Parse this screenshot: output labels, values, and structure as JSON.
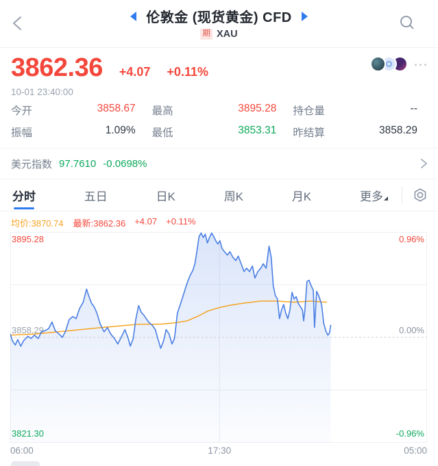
{
  "colors": {
    "red": "#f4473b",
    "green": "#0ca95c",
    "orange": "#f6a423",
    "line_blue": "#4a7fe4",
    "accent_blue": "#2f7bef",
    "label_gray": "#76808f"
  },
  "icons": {
    "back": "chevron-left",
    "prev": "triangle-left",
    "next": "triangle-right",
    "search": "magnifier",
    "more": "ellipsis",
    "usd": "chevron-right",
    "settings": "hexagon-nut",
    "more_tab": "corner-triangle"
  },
  "header": {
    "title": "伦敦金 (现货黄金) CFD",
    "badge": "期",
    "symbol": "XAU"
  },
  "quote": {
    "price": "3862.36",
    "change": "+4.07",
    "change_pct": "+0.11%",
    "timestamp": "10-01 23:40:00",
    "more_label": "⋯"
  },
  "stats": [
    {
      "label": "今开",
      "value": "3858.67",
      "color": "red"
    },
    {
      "label": "最高",
      "value": "3895.28",
      "color": "red"
    },
    {
      "label": "持仓量",
      "value": "--",
      "color": "dark"
    },
    {
      "label": "振幅",
      "value": "1.09%",
      "color": "dark"
    },
    {
      "label": "最低",
      "value": "3853.31",
      "color": "green"
    },
    {
      "label": "昨结算",
      "value": "3858.29",
      "color": "dark"
    }
  ],
  "usd_index": {
    "label": "美元指数",
    "value": "97.7610",
    "change_pct": "-0.0698%"
  },
  "tabs": [
    {
      "label": "分时",
      "active": true
    },
    {
      "label": "五日",
      "active": false
    },
    {
      "label": "日K",
      "active": false
    },
    {
      "label": "周K",
      "active": false
    },
    {
      "label": "月K",
      "active": false
    },
    {
      "label": "更多",
      "active": false
    }
  ],
  "legend": {
    "avg": "均价:3870.74",
    "latest": "最新:3862.36",
    "change": "+4.07",
    "change_pct": "+0.11%"
  },
  "chart_data": {
    "type": "line",
    "title": "分时 intraday line",
    "base_price": 3858.29,
    "ylim_pct": [
      -0.96,
      0.96
    ],
    "x_labels": [
      "06:00",
      "17:30",
      "05:00"
    ],
    "y_left_labels": {
      "top": "3895.28",
      "mid": "3858.29",
      "bottom": "3821.30"
    },
    "y_right_labels": {
      "top": "0.96%",
      "mid": "0.00%",
      "bottom": "-0.96%"
    },
    "grid": {
      "v_frac": 0.502,
      "h_pct": [
        0.48,
        -0.48
      ],
      "zero_dashed": true
    },
    "series": [
      {
        "name": "price_pct",
        "color": "#4a7fe4",
        "fill": true,
        "points": [
          [
            0.0,
            0.03
          ],
          [
            0.005,
            -0.03
          ],
          [
            0.012,
            -0.07
          ],
          [
            0.018,
            -0.02
          ],
          [
            0.025,
            -0.08
          ],
          [
            0.032,
            -0.03
          ],
          [
            0.042,
            0.01
          ],
          [
            0.05,
            -0.01
          ],
          [
            0.058,
            0.02
          ],
          [
            0.067,
            -0.01
          ],
          [
            0.075,
            0.05
          ],
          [
            0.083,
            0.06
          ],
          [
            0.092,
            0.08
          ],
          [
            0.1,
            0.14
          ],
          [
            0.108,
            0.06
          ],
          [
            0.117,
            0.03
          ],
          [
            0.125,
            0.0
          ],
          [
            0.133,
            0.06
          ],
          [
            0.141,
            0.16
          ],
          [
            0.15,
            0.19
          ],
          [
            0.158,
            0.17
          ],
          [
            0.166,
            0.26
          ],
          [
            0.175,
            0.32
          ],
          [
            0.183,
            0.44
          ],
          [
            0.188,
            0.38
          ],
          [
            0.195,
            0.31
          ],
          [
            0.201,
            0.28
          ],
          [
            0.208,
            0.22
          ],
          [
            0.216,
            0.12
          ],
          [
            0.225,
            0.05
          ],
          [
            0.233,
            0.09
          ],
          [
            0.241,
            0.03
          ],
          [
            0.25,
            -0.01
          ],
          [
            0.258,
            -0.06
          ],
          [
            0.266,
            0.0
          ],
          [
            0.275,
            0.07
          ],
          [
            0.283,
            -0.01
          ],
          [
            0.288,
            -0.08
          ],
          [
            0.295,
            -0.01
          ],
          [
            0.301,
            0.16
          ],
          [
            0.308,
            0.29
          ],
          [
            0.314,
            0.23
          ],
          [
            0.321,
            0.2
          ],
          [
            0.328,
            0.16
          ],
          [
            0.334,
            0.13
          ],
          [
            0.341,
            0.11
          ],
          [
            0.348,
            0.07
          ],
          [
            0.354,
            -0.01
          ],
          [
            0.361,
            -0.1
          ],
          [
            0.368,
            -0.03
          ],
          [
            0.374,
            0.07
          ],
          [
            0.381,
            0.03
          ],
          [
            0.388,
            -0.06
          ],
          [
            0.394,
            -0.01
          ],
          [
            0.401,
            0.22
          ],
          [
            0.408,
            0.3
          ],
          [
            0.414,
            0.37
          ],
          [
            0.419,
            0.43
          ],
          [
            0.424,
            0.49
          ],
          [
            0.431,
            0.56
          ],
          [
            0.438,
            0.61
          ],
          [
            0.443,
            0.67
          ],
          [
            0.448,
            0.79
          ],
          [
            0.453,
            0.92
          ],
          [
            0.458,
            0.95
          ],
          [
            0.463,
            0.91
          ],
          [
            0.468,
            0.94
          ],
          [
            0.473,
            0.86
          ],
          [
            0.478,
            0.91
          ],
          [
            0.483,
            0.95
          ],
          [
            0.488,
            0.92
          ],
          [
            0.493,
            0.88
          ],
          [
            0.498,
            0.85
          ],
          [
            0.503,
            0.88
          ],
          [
            0.508,
            0.81
          ],
          [
            0.514,
            0.78
          ],
          [
            0.521,
            0.75
          ],
          [
            0.527,
            0.78
          ],
          [
            0.534,
            0.73
          ],
          [
            0.541,
            0.7
          ],
          [
            0.547,
            0.74
          ],
          [
            0.554,
            0.67
          ],
          [
            0.561,
            0.6
          ],
          [
            0.567,
            0.63
          ],
          [
            0.574,
            0.6
          ],
          [
            0.581,
            0.65
          ],
          [
            0.587,
            0.54
          ],
          [
            0.594,
            0.6
          ],
          [
            0.601,
            0.63
          ],
          [
            0.607,
            0.67
          ],
          [
            0.614,
            0.63
          ],
          [
            0.621,
            0.83
          ],
          [
            0.626,
            0.73
          ],
          [
            0.631,
            0.47
          ],
          [
            0.636,
            0.38
          ],
          [
            0.641,
            0.35
          ],
          [
            0.646,
            0.17
          ],
          [
            0.651,
            0.25
          ],
          [
            0.656,
            0.3
          ],
          [
            0.661,
            0.22
          ],
          [
            0.666,
            0.17
          ],
          [
            0.671,
            0.25
          ],
          [
            0.676,
            0.41
          ],
          [
            0.681,
            0.35
          ],
          [
            0.686,
            0.37
          ],
          [
            0.691,
            0.31
          ],
          [
            0.696,
            0.28
          ],
          [
            0.701,
            0.25
          ],
          [
            0.704,
            0.15
          ],
          [
            0.707,
            0.25
          ],
          [
            0.712,
            0.51
          ],
          [
            0.717,
            0.52
          ],
          [
            0.722,
            0.47
          ],
          [
            0.727,
            0.43
          ],
          [
            0.73,
            0.09
          ],
          [
            0.735,
            0.42
          ],
          [
            0.74,
            0.38
          ],
          [
            0.747,
            0.3
          ],
          [
            0.752,
            0.13
          ],
          [
            0.757,
            0.06
          ],
          [
            0.762,
            0.02
          ],
          [
            0.766,
            0.04
          ],
          [
            0.769,
            0.11
          ]
        ]
      },
      {
        "name": "avg_pct",
        "color": "#f6a423",
        "fill": false,
        "points": [
          [
            0.0,
            0.02
          ],
          [
            0.06,
            0.03
          ],
          [
            0.14,
            0.06
          ],
          [
            0.22,
            0.09
          ],
          [
            0.31,
            0.12
          ],
          [
            0.36,
            0.12
          ],
          [
            0.39,
            0.13
          ],
          [
            0.424,
            0.15
          ],
          [
            0.449,
            0.19
          ],
          [
            0.474,
            0.24
          ],
          [
            0.5,
            0.27
          ],
          [
            0.524,
            0.29
          ],
          [
            0.557,
            0.31
          ],
          [
            0.6,
            0.33
          ],
          [
            0.64,
            0.33
          ],
          [
            0.68,
            0.32
          ],
          [
            0.72,
            0.33
          ],
          [
            0.76,
            0.32
          ]
        ]
      }
    ]
  }
}
